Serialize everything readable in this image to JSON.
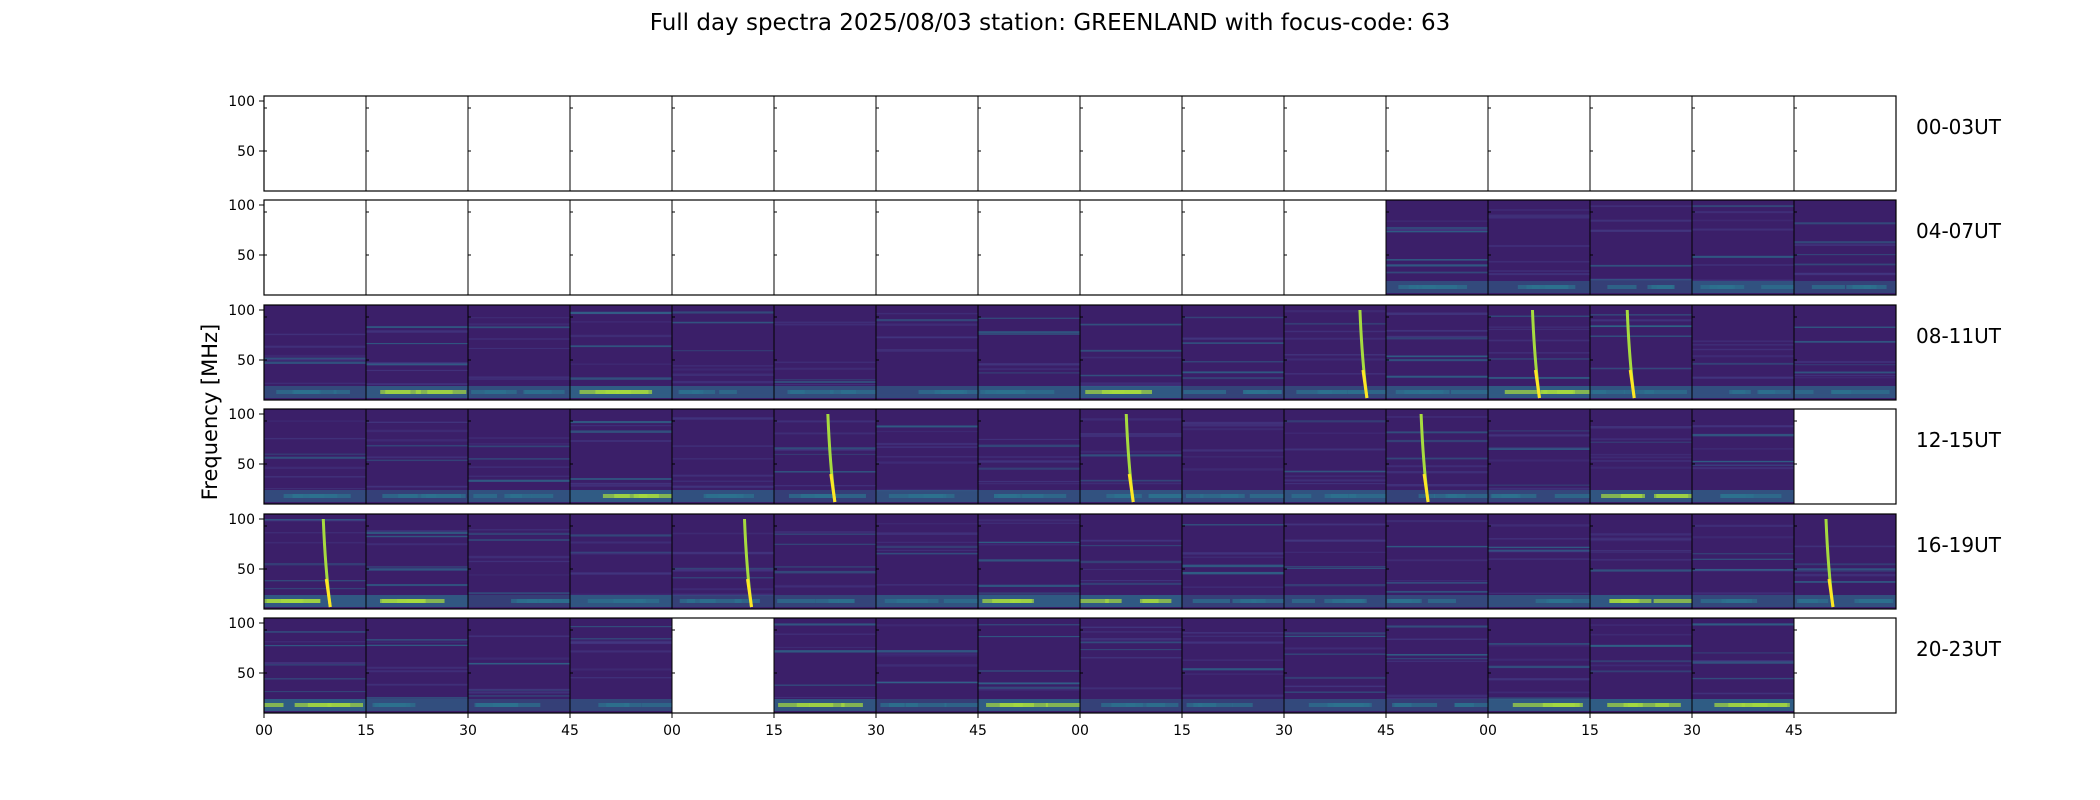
{
  "chart_data": {
    "type": "heatmap",
    "title": "Full day spectra 2025/08/03 station: GREENLAND with focus-code: 63",
    "ylabel": "Frequency [MHz]",
    "xlabel": "",
    "y_ticks": [
      50,
      100
    ],
    "ylim": [
      10,
      105
    ],
    "x_tick_labels": [
      "00",
      "15",
      "30",
      "45",
      "00",
      "15",
      "30",
      "45",
      "00",
      "15",
      "30",
      "45",
      "00",
      "15",
      "30",
      "45"
    ],
    "panels_per_row": 16,
    "colormap": "viridis",
    "rows": [
      {
        "label": "00-03UT",
        "panels": [
          "empty",
          "empty",
          "empty",
          "empty",
          "empty",
          "empty",
          "empty",
          "empty",
          "empty",
          "empty",
          "empty",
          "empty",
          "empty",
          "empty",
          "empty",
          "empty"
        ]
      },
      {
        "label": "04-07UT",
        "panels": [
          "empty",
          "empty",
          "empty",
          "empty",
          "empty",
          "empty",
          "empty",
          "empty",
          "empty",
          "empty",
          "empty",
          "data",
          "data",
          "data",
          "data",
          "data"
        ]
      },
      {
        "label": "08-11UT",
        "panels": [
          "data",
          "data",
          "data",
          "data",
          "data",
          "data",
          "data",
          "data",
          "data",
          "data",
          "data",
          "data",
          "data",
          "data",
          "data",
          "data"
        ]
      },
      {
        "label": "12-15UT",
        "panels": [
          "data",
          "data",
          "data",
          "data",
          "data",
          "data",
          "data",
          "data",
          "data",
          "data",
          "data",
          "data",
          "data",
          "data",
          "data",
          "empty"
        ]
      },
      {
        "label": "16-19UT",
        "panels": [
          "data",
          "data",
          "data",
          "data",
          "data",
          "data",
          "data",
          "data",
          "data",
          "data",
          "data",
          "data",
          "data",
          "data",
          "data",
          "data"
        ]
      },
      {
        "label": "20-23UT",
        "panels": [
          "data",
          "data",
          "data",
          "data",
          "empty",
          "data",
          "data",
          "data",
          "data",
          "data",
          "data",
          "data",
          "data",
          "data",
          "data",
          "empty"
        ]
      }
    ],
    "bursts": [
      {
        "row": 2,
        "panel": 10
      },
      {
        "row": 2,
        "panel": 12
      },
      {
        "row": 2,
        "panel": 13
      },
      {
        "row": 3,
        "panel": 5
      },
      {
        "row": 3,
        "panel": 8
      },
      {
        "row": 3,
        "panel": 11
      },
      {
        "row": 4,
        "panel": 0
      },
      {
        "row": 4,
        "panel": 4
      },
      {
        "row": 4,
        "panel": 15
      }
    ],
    "colors": {
      "background": "#3b1f69",
      "mid": "#433a83",
      "low_band": "#2c728e",
      "bright": "#a6db3f",
      "peak": "#fde725"
    }
  }
}
